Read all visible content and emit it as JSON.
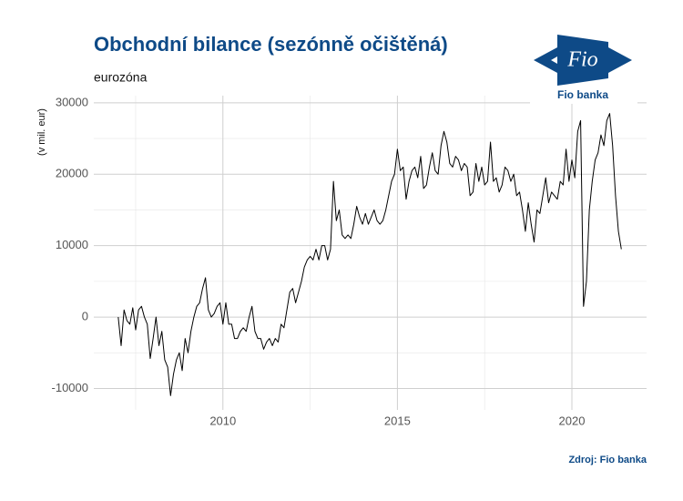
{
  "chart_data": {
    "type": "line",
    "title": "Obchodní bilance (sezónně očištěná)",
    "subtitle": "eurozóna",
    "y_label": "(v mil. eur)",
    "source": "Zdroj: Fio banka",
    "logo": {
      "mark": "Fio",
      "name": "Fio banka"
    },
    "color": "#000000",
    "grid": true,
    "minor_grid": true,
    "xlim": [
      2006.3,
      2022.14
    ],
    "xticks": [
      2010,
      2015,
      2020
    ],
    "ylim": [
      -13000,
      31000
    ],
    "yticks": [
      -10000,
      0,
      10000,
      20000,
      30000
    ],
    "x": [
      2007,
      2007.083,
      2007.167,
      2007.25,
      2007.333,
      2007.417,
      2007.5,
      2007.583,
      2007.667,
      2007.75,
      2007.833,
      2007.917,
      2008,
      2008.083,
      2008.167,
      2008.25,
      2008.333,
      2008.417,
      2008.5,
      2008.583,
      2008.667,
      2008.75,
      2008.833,
      2008.917,
      2009,
      2009.083,
      2009.167,
      2009.25,
      2009.333,
      2009.417,
      2009.5,
      2009.583,
      2009.667,
      2009.75,
      2009.833,
      2009.917,
      2010,
      2010.083,
      2010.167,
      2010.25,
      2010.333,
      2010.417,
      2010.5,
      2010.583,
      2010.667,
      2010.75,
      2010.833,
      2010.917,
      2011,
      2011.083,
      2011.167,
      2011.25,
      2011.333,
      2011.417,
      2011.5,
      2011.583,
      2011.667,
      2011.75,
      2011.833,
      2011.917,
      2012,
      2012.083,
      2012.167,
      2012.25,
      2012.333,
      2012.417,
      2012.5,
      2012.583,
      2012.667,
      2012.75,
      2012.833,
      2012.917,
      2013,
      2013.083,
      2013.167,
      2013.25,
      2013.333,
      2013.417,
      2013.5,
      2013.583,
      2013.667,
      2013.75,
      2013.833,
      2013.917,
      2014,
      2014.083,
      2014.167,
      2014.25,
      2014.333,
      2014.417,
      2014.5,
      2014.583,
      2014.667,
      2014.75,
      2014.833,
      2014.917,
      2015,
      2015.083,
      2015.167,
      2015.25,
      2015.333,
      2015.417,
      2015.5,
      2015.583,
      2015.667,
      2015.75,
      2015.833,
      2015.917,
      2016,
      2016.083,
      2016.167,
      2016.25,
      2016.333,
      2016.417,
      2016.5,
      2016.583,
      2016.667,
      2016.75,
      2016.833,
      2016.917,
      2017,
      2017.083,
      2017.167,
      2017.25,
      2017.333,
      2017.417,
      2017.5,
      2017.583,
      2017.667,
      2017.75,
      2017.833,
      2017.917,
      2018,
      2018.083,
      2018.167,
      2018.25,
      2018.333,
      2018.417,
      2018.5,
      2018.583,
      2018.667,
      2018.75,
      2018.833,
      2018.917,
      2019,
      2019.083,
      2019.167,
      2019.25,
      2019.333,
      2019.417,
      2019.5,
      2019.583,
      2019.667,
      2019.75,
      2019.833,
      2019.917,
      2020,
      2020.083,
      2020.167,
      2020.25,
      2020.333,
      2020.417,
      2020.5,
      2020.583,
      2020.667,
      2020.75,
      2020.833,
      2020.917,
      2021,
      2021.083,
      2021.167,
      2021.25,
      2021.333,
      2021.417
    ],
    "values": [
      0,
      -4000,
      1000,
      -500,
      -1000,
      1300,
      -1800,
      1000,
      1500,
      0,
      -1000,
      -5800,
      -3000,
      0,
      -4000,
      -2000,
      -6000,
      -7000,
      -11000,
      -8000,
      -6000,
      -5000,
      -7500,
      -3000,
      -5000,
      -2000,
      0,
      1500,
      2000,
      4000,
      5500,
      1000,
      0,
      500,
      1500,
      2000,
      -1000,
      2000,
      -1000,
      -1000,
      -3000,
      -3000,
      -2000,
      -1500,
      -2000,
      0,
      1500,
      -2000,
      -3000,
      -3000,
      -4500,
      -3500,
      -3000,
      -4000,
      -3000,
      -3500,
      -1000,
      -1500,
      1000,
      3500,
      4000,
      2000,
      3500,
      5000,
      7000,
      8000,
      8500,
      8000,
      9500,
      8000,
      10000,
      10000,
      8000,
      9500,
      19000,
      13500,
      15000,
      11500,
      11000,
      11500,
      11000,
      13000,
      15500,
      14000,
      13000,
      14500,
      13000,
      14000,
      15000,
      13500,
      13000,
      13500,
      15000,
      17000,
      19000,
      20000,
      23500,
      20500,
      21000,
      16500,
      19000,
      20500,
      21000,
      19500,
      22500,
      18000,
      18500,
      21000,
      23000,
      20500,
      20000,
      24000,
      26000,
      24500,
      21500,
      21000,
      22500,
      22000,
      20500,
      21500,
      21000,
      17000,
      17500,
      21500,
      19000,
      21000,
      18500,
      19000,
      24500,
      19000,
      19500,
      17500,
      18500,
      21000,
      20500,
      19000,
      20000,
      17000,
      17500,
      15000,
      12000,
      16000,
      13000,
      10500,
      15000,
      14500,
      17000,
      19500,
      16000,
      17500,
      17000,
      16500,
      19000,
      18500,
      23500,
      19000,
      22000,
      19500,
      26000,
      27500,
      1500,
      5000,
      15000,
      19000,
      22000,
      23000,
      25500,
      24000,
      27500,
      28500,
      24000,
      17000,
      12000,
      9500
    ]
  }
}
